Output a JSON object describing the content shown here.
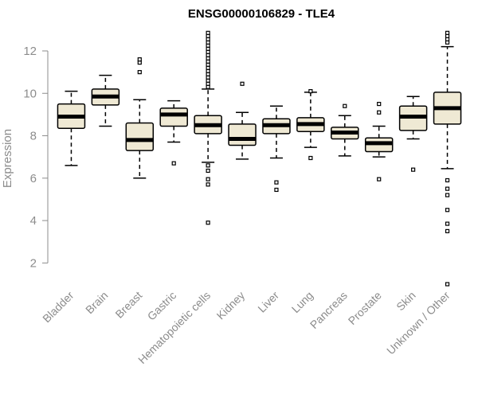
{
  "chart_data": {
    "type": "boxplot",
    "title": "ENSG00000106829 - TLE4",
    "xlabel": "",
    "ylabel": "Expression",
    "ylim": [
      1,
      12.9
    ],
    "yticks": [
      2,
      4,
      6,
      8,
      10,
      12
    ],
    "grid": false,
    "box_fill": "#efe9d4",
    "box_stroke": "#000000",
    "outlier_color": "#000000",
    "axis_color": "#8c8c8c",
    "categories": [
      "Bladder",
      "Brain",
      "Breast",
      "Gastric",
      "Hematopoietic cells",
      "Kidney",
      "Liver",
      "Lung",
      "Pancreas",
      "Prostate",
      "Skin",
      "Unknown / Other"
    ],
    "boxes": [
      {
        "category": "Bladder",
        "whisker_low": 6.6,
        "q1": 8.35,
        "median": 8.9,
        "q3": 9.5,
        "whisker_high": 10.1,
        "outliers": []
      },
      {
        "category": "Brain",
        "whisker_low": 8.45,
        "q1": 9.45,
        "median": 9.85,
        "q3": 10.2,
        "whisker_high": 10.85,
        "outliers": []
      },
      {
        "category": "Breast",
        "whisker_low": 6.0,
        "q1": 7.3,
        "median": 7.8,
        "q3": 8.6,
        "whisker_high": 9.7,
        "outliers": [
          11.0,
          11.45,
          11.6
        ]
      },
      {
        "category": "Gastric",
        "whisker_low": 7.7,
        "q1": 8.45,
        "median": 9.0,
        "q3": 9.3,
        "whisker_high": 9.65,
        "outliers": [
          6.7
        ]
      },
      {
        "category": "Hematopoietic cells",
        "whisker_low": 6.75,
        "q1": 8.1,
        "median": 8.5,
        "q3": 8.95,
        "whisker_high": 10.2,
        "outliers": [
          10.3,
          10.45,
          10.6,
          10.75,
          10.9,
          11.05,
          11.2,
          11.35,
          11.5,
          11.65,
          11.8,
          11.95,
          12.1,
          12.25,
          12.4,
          12.55,
          12.7,
          12.85,
          6.6,
          6.35,
          5.95,
          5.7,
          3.9
        ]
      },
      {
        "category": "Kidney",
        "whisker_low": 6.9,
        "q1": 7.55,
        "median": 7.85,
        "q3": 8.55,
        "whisker_high": 9.1,
        "outliers": [
          10.45
        ]
      },
      {
        "category": "Liver",
        "whisker_low": 6.95,
        "q1": 8.1,
        "median": 8.5,
        "q3": 8.8,
        "whisker_high": 9.4,
        "outliers": [
          5.8,
          5.45
        ]
      },
      {
        "category": "Lung",
        "whisker_low": 7.45,
        "q1": 8.2,
        "median": 8.55,
        "q3": 8.85,
        "whisker_high": 10.05,
        "outliers": [
          10.1,
          6.95
        ]
      },
      {
        "category": "Pancreas",
        "whisker_low": 7.05,
        "q1": 7.85,
        "median": 8.15,
        "q3": 8.4,
        "whisker_high": 8.95,
        "outliers": [
          9.4
        ]
      },
      {
        "category": "Prostate",
        "whisker_low": 7.0,
        "q1": 7.25,
        "median": 7.65,
        "q3": 7.9,
        "whisker_high": 8.45,
        "outliers": [
          9.5,
          9.1,
          5.95
        ]
      },
      {
        "category": "Skin",
        "whisker_low": 7.85,
        "q1": 8.25,
        "median": 8.9,
        "q3": 9.4,
        "whisker_high": 9.85,
        "outliers": [
          6.4
        ]
      },
      {
        "category": "Unknown / Other",
        "whisker_low": 6.45,
        "q1": 8.55,
        "median": 9.3,
        "q3": 10.05,
        "whisker_high": 12.2,
        "outliers": [
          12.4,
          12.55,
          12.7,
          12.85,
          5.9,
          5.5,
          5.2,
          4.5,
          3.85,
          3.5,
          1.0
        ]
      }
    ]
  }
}
